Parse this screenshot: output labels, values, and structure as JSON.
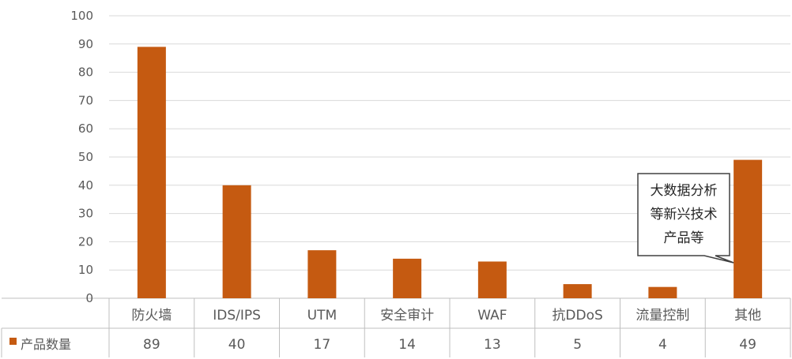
{
  "chart_data": {
    "type": "bar",
    "categories": [
      "防火墙",
      "IDS/IPS",
      "UTM",
      "安全审计",
      "WAF",
      "抗DDoS",
      "流量控制",
      "其他"
    ],
    "series": [
      {
        "name": "产品数量",
        "values": [
          89,
          40,
          17,
          14,
          13,
          5,
          4,
          49
        ]
      }
    ],
    "ylim": [
      0,
      100
    ],
    "yticks": [
      0,
      10,
      20,
      30,
      40,
      50,
      60,
      70,
      80,
      90,
      100
    ],
    "grid": true,
    "data_table": true,
    "legend": "data-table-left",
    "annotation": {
      "text": [
        "大数据分析",
        "等新兴技术",
        "产品等"
      ],
      "target_category": "其他"
    },
    "colors": {
      "bar": "#C55A11",
      "grid": "#d9d9d9",
      "axis": "#bfbfbf",
      "text": "#595959"
    }
  }
}
